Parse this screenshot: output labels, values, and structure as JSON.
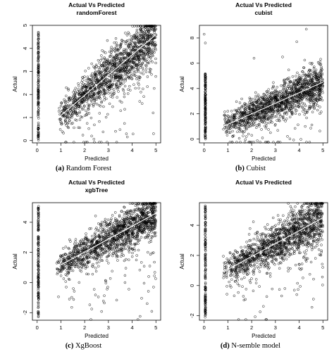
{
  "chart_data": [
    {
      "type": "scatter",
      "title": "Actual Vs Predicted",
      "subtitle": "randomForest",
      "xlabel": "Predicted",
      "ylabel": "Actual",
      "caption_label": "(a)",
      "caption_text": "Random Forest",
      "xlim": [
        -0.2,
        5.2
      ],
      "ylim": [
        -0.1,
        5.0
      ],
      "xticks": [
        0,
        1,
        2,
        3,
        4,
        5
      ],
      "yticks": [
        0,
        1,
        2,
        3,
        4,
        5
      ],
      "series": [
        {
          "cluster": {
            "count": 1500,
            "x_range": [
              0.9,
              5.0
            ],
            "y_fit": [
              1.0,
              4.6
            ],
            "y_spread": 0.55
          },
          "column_at_zero": {
            "x": 0.05,
            "y_range": [
              0.0,
              4.7
            ]
          },
          "outliers": [
            [
              0.05,
              4.7
            ],
            [
              4.9,
              0.3
            ],
            [
              3.3,
              0.4
            ]
          ]
        }
      ]
    },
    {
      "type": "scatter",
      "title": "Actual Vs Predicted",
      "subtitle": "cubist",
      "xlabel": "Predicted",
      "ylabel": "Actual",
      "caption_label": "(b)",
      "caption_text": "Cubist",
      "xlim": [
        -0.2,
        5.2
      ],
      "ylim": [
        -0.3,
        9.0
      ],
      "xticks": [
        0,
        1,
        2,
        3,
        4,
        5
      ],
      "yticks": [
        0,
        2,
        4,
        6,
        8
      ],
      "series": [
        {
          "cluster": {
            "count": 1500,
            "x_range": [
              0.8,
              5.0
            ],
            "y_fit": [
              1.0,
              4.5
            ],
            "y_spread": 0.75
          },
          "column_at_zero": {
            "x": 0.05,
            "y_range": [
              0.0,
              5.2
            ]
          },
          "outliers": [
            [
              0.0,
              8.3
            ],
            [
              0.05,
              7.6
            ],
            [
              3.9,
              7.7
            ],
            [
              4.3,
              8.7
            ],
            [
              2.1,
              6.4
            ],
            [
              3.3,
              6.5
            ]
          ]
        }
      ]
    },
    {
      "type": "scatter",
      "title": "Actual Vs Predicted",
      "subtitle": "xgbTree",
      "xlabel": "Predicted",
      "ylabel": "Actual",
      "caption_label": "(c)",
      "caption_text": "XgBoost",
      "xlim": [
        -0.2,
        5.2
      ],
      "ylim": [
        -2.5,
        5.3
      ],
      "xticks": [
        0,
        1,
        2,
        3,
        4,
        5
      ],
      "yticks": [
        -2,
        0,
        2,
        4
      ],
      "series": [
        {
          "cluster": {
            "count": 1500,
            "x_range": [
              0.8,
              5.0
            ],
            "y_fit": [
              1.0,
              4.6
            ],
            "y_spread": 0.7
          },
          "column_at_zero": {
            "x": 0.05,
            "y_range": [
              -2.3,
              5.1
            ]
          },
          "outliers": [
            [
              4.9,
              -0.3
            ],
            [
              4.7,
              0.4
            ],
            [
              3.7,
              0.0
            ]
          ]
        }
      ]
    },
    {
      "type": "scatter",
      "title": "Actual Vs Predicted",
      "subtitle": "",
      "xlabel": "Predicted",
      "ylabel": "Actual",
      "caption_label": "(d)",
      "caption_text": "N-semble model",
      "xlim": [
        -0.2,
        5.2
      ],
      "ylim": [
        -2.3,
        5.5
      ],
      "xticks": [
        0,
        1,
        2,
        3,
        4,
        5
      ],
      "yticks": [
        -2,
        0,
        2,
        4
      ],
      "series": [
        {
          "cluster": {
            "count": 1500,
            "x_range": [
              0.8,
              5.0
            ],
            "y_fit": [
              0.9,
              4.5
            ],
            "y_spread": 0.75
          },
          "column_at_zero": {
            "x": 0.05,
            "y_range": [
              -2.1,
              5.3
            ]
          },
          "outliers": [
            [
              3.9,
              -0.6
            ],
            [
              4.6,
              -0.9
            ],
            [
              3.4,
              -0.2
            ]
          ]
        }
      ]
    }
  ]
}
